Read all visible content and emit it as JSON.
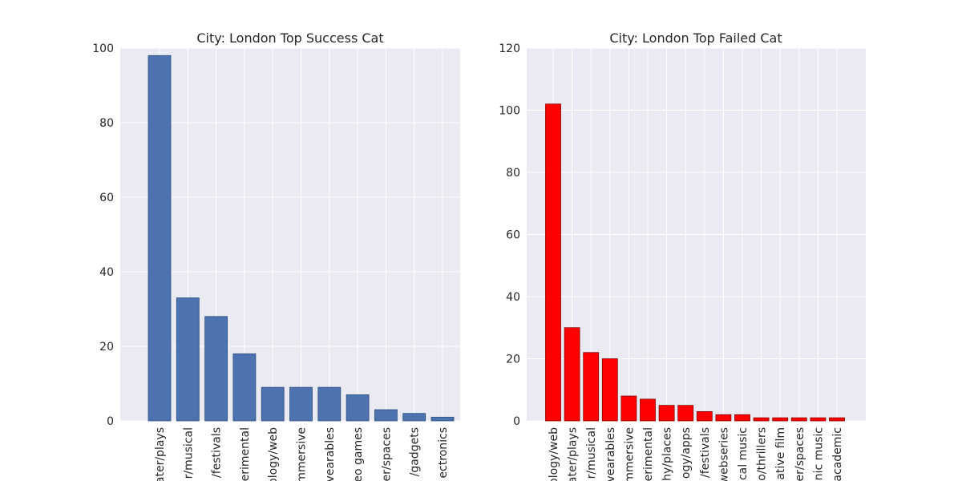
{
  "chart_data": [
    {
      "type": "bar",
      "title": "City: London Top Success Cat",
      "xlabel": "",
      "ylabel": "",
      "ylim": [
        0,
        100
      ],
      "yticks": [
        0,
        20,
        40,
        60,
        80,
        100
      ],
      "tick_labels_shown": [
        "ater/plays",
        "r/musical",
        "/festivals",
        "erimental",
        "ology/web",
        "mmersive",
        "vearables",
        "eo games",
        "er/spaces",
        "/gadgets",
        "ectronics"
      ],
      "values": [
        98,
        33,
        28,
        18,
        9,
        9,
        9,
        7,
        3,
        2,
        1
      ],
      "colors": {
        "bar": "#4c72b0",
        "edge": "#2f4f7f"
      },
      "grid": true
    },
    {
      "type": "bar",
      "title": "City: London Top Failed Cat",
      "xlabel": "",
      "ylabel": "",
      "ylim": [
        0,
        120
      ],
      "yticks": [
        0,
        20,
        40,
        60,
        80,
        100,
        120
      ],
      "tick_labels_shown": [
        "ology/web",
        "ater/plays",
        "r/musical",
        "vearables",
        "mmersive",
        "erimental",
        "hy/places",
        "ogy/apps",
        "/festivals",
        "webseries",
        "cal music",
        "o/thrillers",
        "ative film",
        "er/spaces",
        "nic music",
        "academic"
      ],
      "values": [
        102,
        30,
        22,
        20,
        8,
        7,
        5,
        5,
        3,
        2,
        2,
        1,
        1,
        1,
        1,
        1
      ],
      "colors": {
        "bar": "#ff0000",
        "edge": "#8b0000"
      },
      "grid": true
    }
  ]
}
